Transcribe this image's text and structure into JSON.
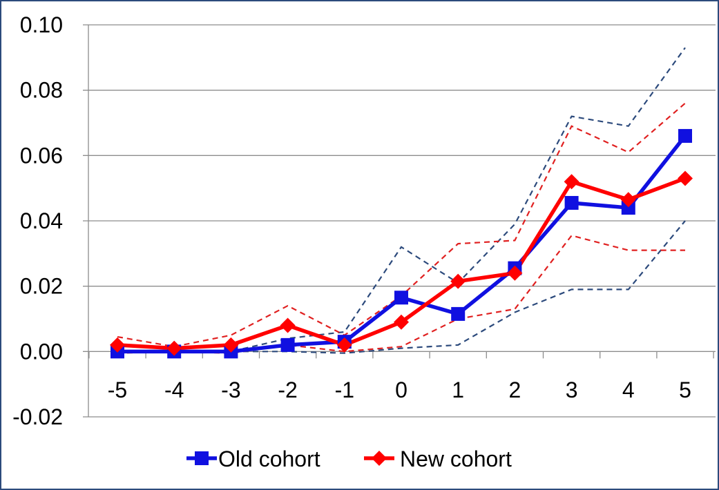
{
  "chart_data": {
    "type": "line",
    "x": [
      -5,
      -4,
      -3,
      -2,
      -1,
      0,
      1,
      2,
      3,
      4,
      5
    ],
    "x_tick_labels": [
      "-5",
      "-4",
      "-3",
      "-2",
      "-1",
      "0",
      "1",
      "2",
      "3",
      "4",
      "5"
    ],
    "ylim": [
      -0.02,
      0.1
    ],
    "y_ticks": [
      0.1,
      0.08,
      0.06,
      0.04,
      0.02,
      0.0,
      -0.02
    ],
    "y_tick_labels": [
      "0.10",
      "0.08",
      "0.06",
      "0.04",
      "0.02",
      "0.00",
      "-0.02"
    ],
    "grid": "horizontal",
    "legend_position": "bottom",
    "series": [
      {
        "name": "Old cohort",
        "color": "#1010e0",
        "marker": "square",
        "values": [
          0.0,
          0.0,
          0.0,
          0.002,
          0.003,
          0.0165,
          0.0115,
          0.0255,
          0.0455,
          0.044,
          0.066
        ],
        "ci_color": "#2c4a7c",
        "ci_upper": [
          0.0,
          0.0,
          0.0,
          0.004,
          0.006,
          0.032,
          0.021,
          0.039,
          0.072,
          0.069,
          0.093
        ],
        "ci_lower": [
          0.0,
          0.0,
          0.0,
          0.0,
          -0.0005,
          0.001,
          0.002,
          0.012,
          0.019,
          0.019,
          0.04
        ]
      },
      {
        "name": "New cohort",
        "color": "#ff0000",
        "marker": "diamond",
        "values": [
          0.002,
          0.001,
          0.002,
          0.008,
          0.002,
          0.009,
          0.0215,
          0.024,
          0.052,
          0.0465,
          0.053
        ],
        "ci_color": "#e02020",
        "ci_upper": [
          0.0045,
          0.0015,
          0.005,
          0.014,
          0.005,
          0.017,
          0.033,
          0.034,
          0.069,
          0.061,
          0.076
        ],
        "ci_lower": [
          -0.0005,
          0.0,
          -0.0005,
          0.002,
          0.0,
          0.0015,
          0.01,
          0.013,
          0.0355,
          0.031,
          0.031
        ]
      }
    ]
  }
}
